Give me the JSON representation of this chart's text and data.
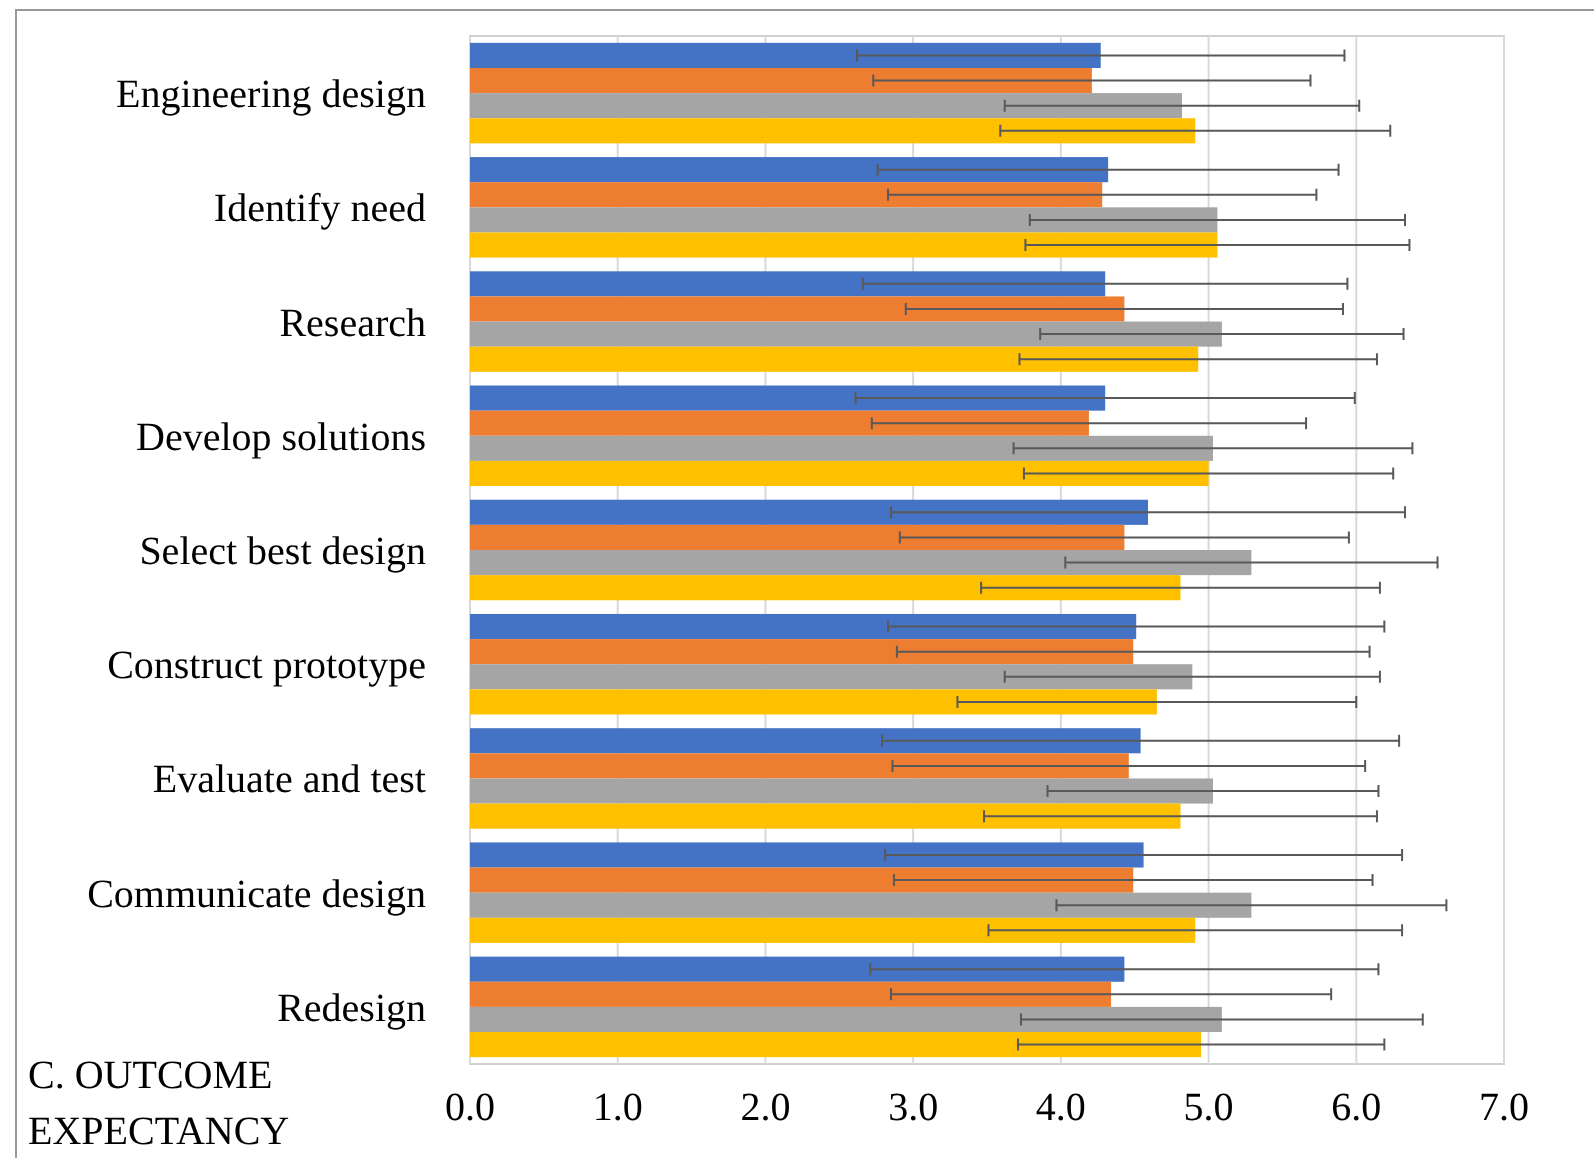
{
  "chart_data": {
    "type": "bar",
    "orientation": "horizontal",
    "title": "C. OUTCOME EXPECTANCY",
    "categories": [
      "Engineering design",
      "Identify need",
      "Research",
      "Develop solutions",
      "Select best design",
      "Construct prototype",
      "Evaluate and test",
      "Communicate design",
      "Redesign"
    ],
    "series": [
      {
        "color": "#4472c4",
        "values": [
          4.27,
          4.32,
          4.3,
          4.3,
          4.59,
          4.51,
          4.54,
          4.56,
          4.43
        ],
        "errors": [
          1.65,
          1.56,
          1.64,
          1.69,
          1.74,
          1.68,
          1.75,
          1.75,
          1.72
        ]
      },
      {
        "color": "#ed7d31",
        "values": [
          4.21,
          4.28,
          4.43,
          4.19,
          4.43,
          4.49,
          4.46,
          4.49,
          4.34
        ],
        "errors": [
          1.48,
          1.45,
          1.48,
          1.47,
          1.52,
          1.6,
          1.6,
          1.62,
          1.49
        ]
      },
      {
        "color": "#a5a5a5",
        "values": [
          4.82,
          5.06,
          5.09,
          5.03,
          5.29,
          4.89,
          5.03,
          5.29,
          5.09
        ],
        "errors": [
          1.2,
          1.27,
          1.23,
          1.35,
          1.26,
          1.27,
          1.12,
          1.32,
          1.36
        ]
      },
      {
        "color": "#ffc000",
        "values": [
          4.91,
          5.06,
          4.93,
          5.0,
          4.81,
          4.65,
          4.81,
          4.91,
          4.95
        ],
        "errors": [
          1.32,
          1.3,
          1.21,
          1.25,
          1.35,
          1.35,
          1.33,
          1.4,
          1.24
        ]
      }
    ],
    "xlim": [
      0,
      7
    ],
    "xticks": [
      {
        "value": 0,
        "label": "0.0"
      },
      {
        "value": 1,
        "label": "1.0"
      },
      {
        "value": 2,
        "label": "2.0"
      },
      {
        "value": 3,
        "label": "3.0"
      },
      {
        "value": 4,
        "label": "4.0"
      },
      {
        "value": 5,
        "label": "5.0"
      },
      {
        "value": 6,
        "label": "6.0"
      },
      {
        "value": 7,
        "label": "7.0"
      }
    ],
    "grid": "x"
  }
}
